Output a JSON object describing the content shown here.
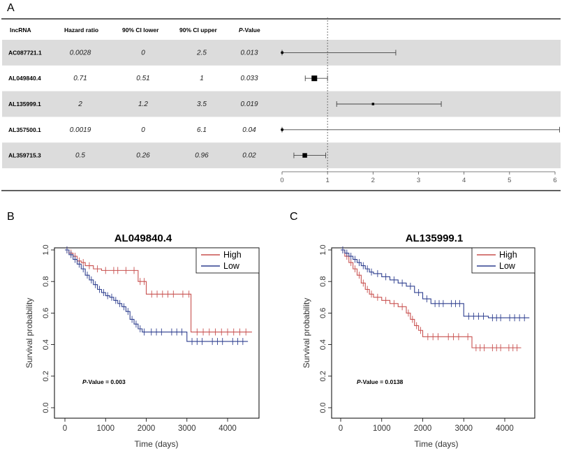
{
  "panels": {
    "a": "A",
    "b": "B",
    "c": "C"
  },
  "forest": {
    "headers": {
      "lncrna": "lncRNA",
      "hr": "Hazard ratio",
      "lower": "90% CI lower",
      "upper": "90% CI upper",
      "p_italic": "P",
      "p_rest": "-Value"
    },
    "axis_ticks": [
      "0",
      "1",
      "2",
      "3",
      "4",
      "5",
      "6"
    ],
    "rows": [
      {
        "name": "AC087721.1",
        "hr_text": "0.0028",
        "lo_text": "0",
        "up_text": "2.5",
        "p_text": "0.013"
      },
      {
        "name": "AL049840.4",
        "hr_text": "0.71",
        "lo_text": "0.51",
        "up_text": "1",
        "p_text": "0.033"
      },
      {
        "name": "AL135999.1",
        "hr_text": "2",
        "lo_text": "1.2",
        "up_text": "3.5",
        "p_text": "0.019"
      },
      {
        "name": "AL357500.1",
        "hr_text": "0.0019",
        "lo_text": "0",
        "up_text": "6.1",
        "p_text": "0.04"
      },
      {
        "name": "AL359715.3",
        "hr_text": "0.5",
        "lo_text": "0.26",
        "up_text": "0.96",
        "p_text": "0.02"
      }
    ]
  },
  "km_common": {
    "xlabel": "Time (days)",
    "ylabel": "Survival probability",
    "xticks": [
      "0",
      "1000",
      "2000",
      "3000",
      "4000"
    ],
    "yticks": [
      "0.0",
      "0.2",
      "0.4",
      "0.6",
      "0.8",
      "1.0"
    ],
    "legend_high": "High",
    "legend_low": "Low",
    "pv_prefix": "P",
    "pv_mid": "-Value = "
  },
  "km_b": {
    "title": "AL049840.4",
    "pvalue": "0.003"
  },
  "km_c": {
    "title": "AL135999.1",
    "pvalue": "0.0138"
  },
  "colors": {
    "high": "#c8504f",
    "low": "#2e3f8f",
    "row_shade": "#dcdcdc"
  },
  "chart_data": [
    {
      "type": "forest",
      "title": "",
      "xlabel": "Hazard ratio",
      "xlim": [
        0,
        6
      ],
      "ref_line": 1,
      "categories": [
        "AC087721.1",
        "AL049840.4",
        "AL135999.1",
        "AL357500.1",
        "AL359715.3"
      ],
      "hr": [
        0.0028,
        0.71,
        2,
        0.0019,
        0.5
      ],
      "ci_lower": [
        0,
        0.51,
        1.2,
        0,
        0.26
      ],
      "ci_upper": [
        2.5,
        1,
        3.5,
        6.1,
        0.96
      ],
      "p": [
        0.013,
        0.033,
        0.019,
        0.04,
        0.02
      ]
    },
    {
      "type": "line",
      "title": "AL049840.4",
      "xlabel": "Time (days)",
      "ylabel": "Survival probability",
      "xlim": [
        0,
        4600
      ],
      "ylim": [
        0,
        1
      ],
      "series": [
        {
          "name": "High",
          "x": [
            0,
            100,
            200,
            300,
            400,
            500,
            700,
            900,
            1100,
            1400,
            1600,
            1800,
            1900,
            2000,
            2800,
            3000,
            3100,
            4600
          ],
          "y": [
            1,
            0.98,
            0.96,
            0.93,
            0.92,
            0.9,
            0.88,
            0.87,
            0.87,
            0.87,
            0.87,
            0.8,
            0.8,
            0.72,
            0.72,
            0.72,
            0.48,
            0.48
          ]
        },
        {
          "name": "Low",
          "x": [
            0,
            100,
            200,
            300,
            400,
            500,
            600,
            700,
            800,
            900,
            1000,
            1100,
            1200,
            1300,
            1400,
            1500,
            1600,
            1700,
            1800,
            1900,
            2000,
            2500,
            3000,
            3500,
            4000,
            4500
          ],
          "y": [
            1,
            0.97,
            0.94,
            0.91,
            0.88,
            0.84,
            0.81,
            0.78,
            0.75,
            0.73,
            0.71,
            0.7,
            0.68,
            0.66,
            0.64,
            0.61,
            0.56,
            0.53,
            0.5,
            0.48,
            0.48,
            0.48,
            0.42,
            0.42,
            0.42,
            0.42
          ]
        }
      ],
      "legend": [
        "High",
        "Low"
      ],
      "annotation": "P-Value = 0.003"
    },
    {
      "type": "line",
      "title": "AL135999.1",
      "xlabel": "Time (days)",
      "ylabel": "Survival probability",
      "xlim": [
        0,
        4600
      ],
      "ylim": [
        0,
        1
      ],
      "series": [
        {
          "name": "High",
          "x": [
            0,
            100,
            200,
            300,
            400,
            500,
            600,
            700,
            800,
            1000,
            1200,
            1400,
            1600,
            1700,
            1800,
            1900,
            2000,
            2500,
            3000,
            3200,
            3600,
            4000,
            4400
          ],
          "y": [
            1,
            0.96,
            0.92,
            0.88,
            0.84,
            0.79,
            0.75,
            0.72,
            0.7,
            0.68,
            0.66,
            0.64,
            0.6,
            0.56,
            0.52,
            0.49,
            0.45,
            0.45,
            0.45,
            0.38,
            0.38,
            0.38,
            0.38
          ]
        },
        {
          "name": "Low",
          "x": [
            0,
            100,
            200,
            300,
            400,
            500,
            600,
            700,
            800,
            1000,
            1200,
            1400,
            1600,
            1800,
            2000,
            2200,
            2600,
            3000,
            3600,
            4000,
            4600
          ],
          "y": [
            1,
            0.98,
            0.96,
            0.94,
            0.92,
            0.9,
            0.88,
            0.86,
            0.85,
            0.83,
            0.81,
            0.79,
            0.77,
            0.73,
            0.69,
            0.66,
            0.66,
            0.58,
            0.57,
            0.57,
            0.57
          ]
        }
      ],
      "legend": [
        "High",
        "Low"
      ],
      "annotation": "P-Value = 0.0138"
    }
  ]
}
